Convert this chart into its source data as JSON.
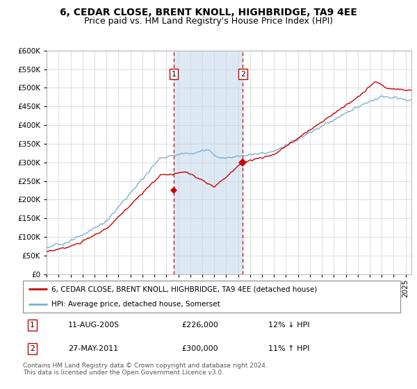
{
  "title": "6, CEDAR CLOSE, BRENT KNOLL, HIGHBRIDGE, TA9 4EE",
  "subtitle": "Price paid vs. HM Land Registry's House Price Index (HPI)",
  "ylim": [
    0,
    600000
  ],
  "yticks": [
    0,
    50000,
    100000,
    150000,
    200000,
    250000,
    300000,
    350000,
    400000,
    450000,
    500000,
    550000,
    600000
  ],
  "xlim_start": 1995,
  "xlim_end": 2025.5,
  "line1_color": "#cc0000",
  "line2_color": "#7ab0d4",
  "shaded_color": "#dce9f5",
  "vline_color": "#cc0000",
  "marker_color": "#cc0000",
  "sale1_x": 2005.62,
  "sale1_y": 226000,
  "sale2_x": 2011.4,
  "sale2_y": 300000,
  "legend_line1": "6, CEDAR CLOSE, BRENT KNOLL, HIGHBRIDGE, TA9 4EE (detached house)",
  "legend_line2": "HPI: Average price, detached house, Somerset",
  "table_row1_num": "1",
  "table_row1_date": "11-AUG-2005",
  "table_row1_price": "£226,000",
  "table_row1_hpi": "12% ↓ HPI",
  "table_row2_num": "2",
  "table_row2_date": "27-MAY-2011",
  "table_row2_price": "£300,000",
  "table_row2_hpi": "11% ↑ HPI",
  "footer": "Contains HM Land Registry data © Crown copyright and database right 2024.\nThis data is licensed under the Open Government Licence v3.0.",
  "title_fontsize": 10,
  "subtitle_fontsize": 9,
  "tick_fontsize": 7.5,
  "legend_fontsize": 7.5,
  "table_fontsize": 8,
  "footer_fontsize": 6.5
}
